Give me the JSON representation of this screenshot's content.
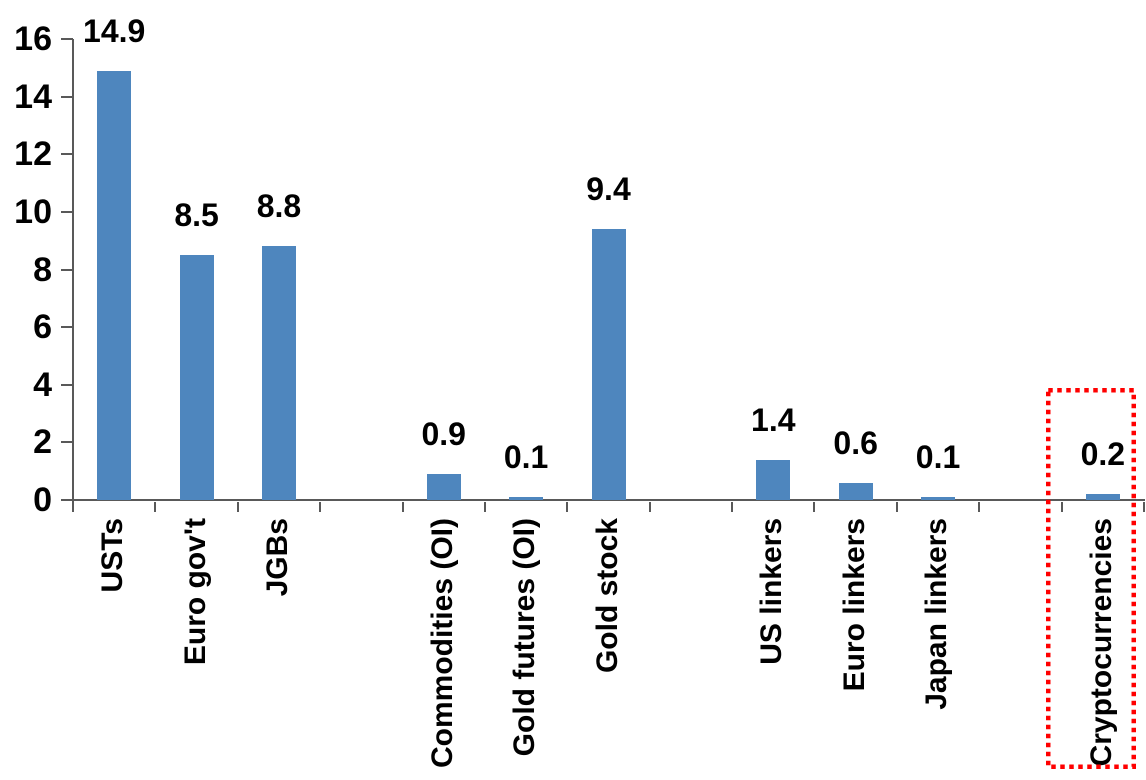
{
  "chart_data": {
    "type": "bar",
    "categories": [
      "USTs",
      "Euro gov't",
      "JGBs",
      "Commodities (OI)",
      "Gold futures (OI)",
      "Gold stock",
      "US linkers",
      "Euro linkers",
      "Japan linkers",
      "Cryptocurrencies"
    ],
    "values": [
      14.9,
      8.5,
      8.8,
      0.9,
      0.1,
      9.4,
      1.4,
      0.6,
      0.1,
      0.2
    ],
    "labels": [
      "14.9",
      "8.5",
      "8.8",
      "0.9",
      "0.1",
      "9.4",
      "1.4",
      "0.6",
      "0.1",
      "0.2"
    ],
    "slots": [
      0,
      1,
      2,
      4,
      5,
      6,
      8,
      9,
      10,
      12
    ],
    "total_slots": 13,
    "ylim": [
      0,
      16
    ],
    "yticks": [
      0,
      2,
      4,
      6,
      8,
      10,
      12,
      14,
      16
    ],
    "grid": "off",
    "legend": "none",
    "bar_color": "#4E86BE",
    "axis_color": "#595959",
    "text_color": "#000000",
    "highlight": {
      "category": "Cryptocurrencies",
      "style": "red-dotted-outline",
      "color": "#FF0000"
    }
  }
}
